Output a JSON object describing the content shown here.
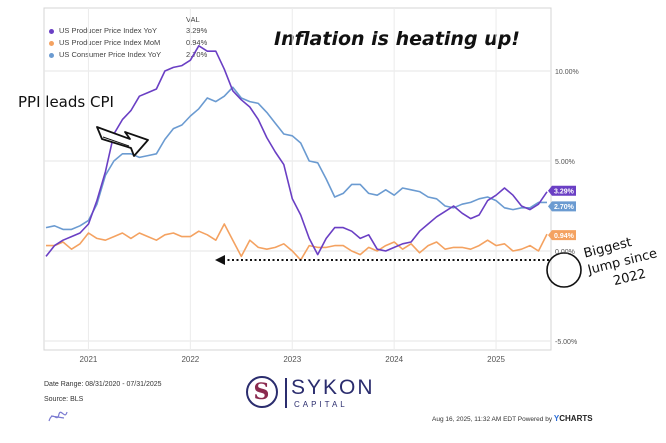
{
  "headline": "Inflation is heating up!",
  "legend": {
    "val_header": "VAL",
    "items": [
      {
        "name": "US Producer Price Index YoY",
        "value": "3.29%",
        "color": "#6a3fc4"
      },
      {
        "name": "US Producer Price Index MoM",
        "value": "0.94%",
        "color": "#f4a261"
      },
      {
        "name": "US Consumer Price Index YoY",
        "value": "2.70%",
        "color": "#6b9bd1"
      }
    ]
  },
  "annotations": {
    "ppi_leads": "PPI leads CPI",
    "biggest_jump": [
      "Biggest",
      "Jump since",
      "2022"
    ]
  },
  "chart_data": {
    "type": "line",
    "x_start": "2020-08",
    "x_end": "2025-07",
    "frequency": "monthly",
    "x_tick_labels": [
      "2021",
      "2022",
      "2023",
      "2024",
      "2025"
    ],
    "y_tick_labels": [
      "10.00%",
      "5.00%",
      "0.00%",
      "-5.00%"
    ],
    "y_ticks": [
      10,
      5,
      0,
      -5
    ],
    "ylim": [
      -5.5,
      13.5
    ],
    "grid": true,
    "series": [
      {
        "name": "US Producer Price Index YoY",
        "color": "#6a3fc4",
        "end_label": "3.29%",
        "values": [
          -0.3,
          0.3,
          0.6,
          0.8,
          1.0,
          1.5,
          2.8,
          4.4,
          6.5,
          7.3,
          7.8,
          8.6,
          8.8,
          9.0,
          10.0,
          10.2,
          10.3,
          10.6,
          11.4,
          11.1,
          11.1,
          10.1,
          8.9,
          8.4,
          8.0,
          7.3,
          6.3,
          5.5,
          4.8,
          2.9,
          2.0,
          0.7,
          -0.2,
          0.7,
          1.3,
          1.3,
          1.1,
          0.7,
          0.9,
          0.1,
          0.0,
          0.2,
          0.4,
          0.5,
          1.1,
          1.5,
          1.9,
          2.2,
          2.5,
          2.1,
          1.8,
          2.0,
          2.8,
          3.1,
          3.5,
          3.1,
          2.5,
          2.3,
          2.6,
          3.29
        ]
      },
      {
        "name": "US Producer Price Index MoM",
        "color": "#f4a261",
        "end_label": "0.94%",
        "values": [
          0.3,
          0.3,
          0.5,
          0.1,
          0.4,
          1.0,
          0.7,
          0.6,
          0.8,
          1.0,
          0.7,
          1.0,
          0.8,
          0.6,
          0.9,
          1.0,
          0.8,
          0.8,
          1.1,
          0.9,
          0.6,
          1.5,
          0.6,
          -0.3,
          0.6,
          0.2,
          0.1,
          0.2,
          0.4,
          0.0,
          -0.5,
          0.3,
          0.2,
          0.2,
          0.3,
          0.3,
          0.0,
          -0.2,
          0.2,
          0.0,
          0.3,
          0.5,
          0.1,
          0.4,
          -0.1,
          0.3,
          0.5,
          0.1,
          0.2,
          0.2,
          0.1,
          0.3,
          0.6,
          0.3,
          0.4,
          0.0,
          0.1,
          0.3,
          0.0,
          0.94
        ]
      },
      {
        "name": "US Consumer Price Index YoY",
        "color": "#6b9bd1",
        "end_label": "2.70%",
        "values": [
          1.3,
          1.4,
          1.2,
          1.2,
          1.4,
          1.7,
          2.6,
          4.2,
          5.0,
          5.4,
          5.4,
          5.2,
          5.3,
          5.4,
          6.2,
          6.8,
          7.0,
          7.5,
          7.9,
          8.5,
          8.3,
          8.6,
          9.1,
          8.5,
          8.3,
          8.2,
          7.7,
          7.1,
          6.5,
          6.4,
          6.0,
          5.0,
          4.9,
          4.0,
          3.0,
          3.2,
          3.7,
          3.7,
          3.2,
          3.1,
          3.4,
          3.1,
          3.5,
          3.4,
          3.3,
          3.0,
          2.9,
          2.5,
          2.4,
          2.6,
          2.7,
          2.9,
          3.0,
          2.8,
          2.4,
          2.3,
          2.4,
          2.4,
          2.7,
          2.7
        ]
      }
    ]
  },
  "footer": {
    "date_range": "Date Range: 08/31/2020 - 07/31/2025",
    "source": "Source: BLS",
    "logo_letter": "S",
    "logo_name": "SYKON",
    "logo_sub": "CAPITAL",
    "timestamp": "Aug 16, 2025, 11:32 AM EDT Powered by",
    "powered_brand": "YCHARTS",
    "brand_y": "Y",
    "brand_rest": "CHARTS"
  }
}
